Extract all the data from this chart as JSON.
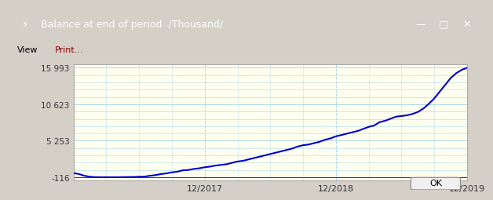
{
  "title": "Balance at end of period  /Thousand/",
  "window_bg": "#d4d0c8",
  "plot_bg": "#fffff0",
  "line_color": "#0000cc",
  "zero_line_color": "#cc0000",
  "grid_color": "#add8e6",
  "yticks": [
    -116,
    5253,
    10623,
    15993
  ],
  "ytick_labels": [
    "-116",
    "5 253",
    "10 623",
    "15 993"
  ],
  "xtick_labels": [
    "12/2017",
    "12/2018",
    "12/2019"
  ],
  "ylim": [
    -600,
    16500
  ],
  "xlim_start": 0,
  "xlim_end": 36,
  "x_tick_positions": [
    12,
    24,
    36
  ],
  "menu_items": [
    "View",
    "Print..."
  ],
  "ok_button": "OK",
  "data_x": [
    0,
    0.5,
    1,
    1.5,
    2,
    2.5,
    3,
    3.5,
    4,
    4.5,
    5,
    5.5,
    6,
    6.5,
    7,
    7.5,
    8,
    8.5,
    9,
    9.5,
    10,
    10.5,
    11,
    11.5,
    12,
    12.5,
    13,
    13.5,
    14,
    14.5,
    15,
    15.5,
    16,
    16.5,
    17,
    17.5,
    18,
    18.5,
    19,
    19.5,
    20,
    20.5,
    21,
    21.5,
    22,
    22.5,
    23,
    23.5,
    24,
    24.5,
    25,
    25.5,
    26,
    26.5,
    27,
    27.5,
    28,
    28.5,
    29,
    29.5,
    30,
    30.5,
    31,
    31.5,
    32,
    32.5,
    33,
    33.5,
    34,
    34.5,
    35,
    35.5,
    36
  ],
  "data_y": [
    500,
    350,
    100,
    -50,
    -100,
    -116,
    -110,
    -116,
    -116,
    -100,
    -90,
    -80,
    -50,
    -30,
    100,
    200,
    350,
    450,
    600,
    700,
    900,
    950,
    1100,
    1200,
    1350,
    1450,
    1600,
    1700,
    1800,
    2000,
    2200,
    2300,
    2500,
    2700,
    2900,
    3100,
    3300,
    3500,
    3700,
    3900,
    4100,
    4400,
    4600,
    4700,
    4900,
    5100,
    5400,
    5600,
    5900,
    6100,
    6300,
    6500,
    6700,
    7000,
    7300,
    7500,
    8000,
    8200,
    8500,
    8800,
    8900,
    9000,
    9200,
    9500,
    10000,
    10700,
    11500,
    12500,
    13500,
    14500,
    15200,
    15700,
    15993
  ]
}
